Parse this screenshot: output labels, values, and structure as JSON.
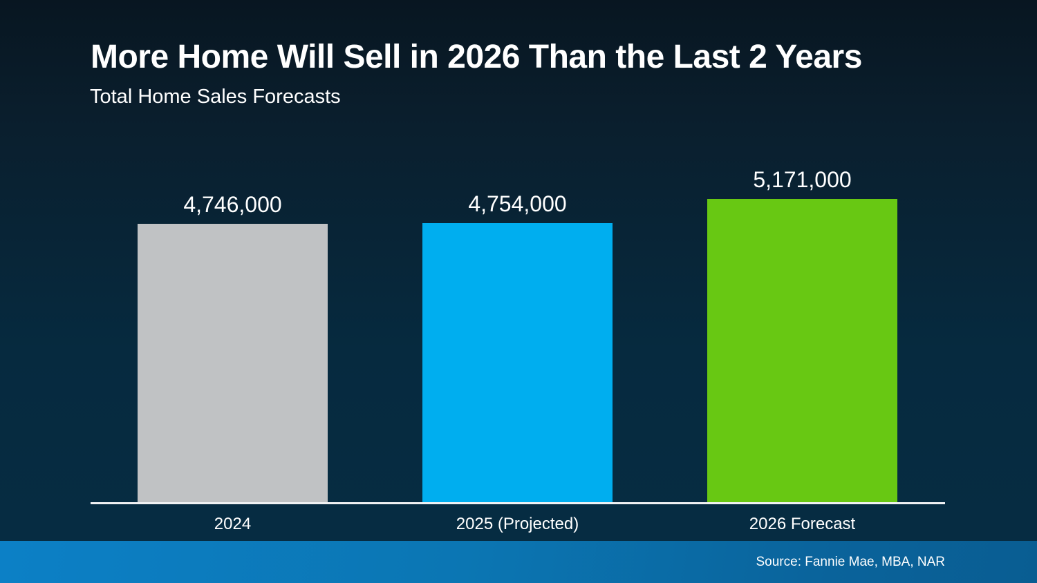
{
  "slide": {
    "title": "More Home Will Sell in 2026 Than the Last 2 Years",
    "subtitle": "Total Home Sales Forecasts",
    "source": "Source: Fannie Mae, MBA, NAR"
  },
  "colors": {
    "background_top": "#081621",
    "background_bottom": "#062c42",
    "axis_line": "#f0f2f4",
    "text": "#ffffff",
    "footer_gradient_left": "#0c80c6",
    "footer_gradient_right": "#095d92"
  },
  "chart_data": {
    "type": "bar",
    "title": "More Home Will Sell in 2026 Than the Last 2 Years",
    "subtitle": "Total Home Sales Forecasts",
    "categories": [
      "2024",
      "2025 (Projected)",
      "2026 Forecast"
    ],
    "values": [
      4746000,
      4754000,
      5171000
    ],
    "value_labels": [
      "4,746,000",
      "4,754,000",
      "5,171,000"
    ],
    "bar_colors": [
      "#c0c2c4",
      "#00aeef",
      "#68c813"
    ],
    "xlabel": "",
    "ylabel": "",
    "ylim": [
      0,
      5500000
    ],
    "baseline": 0,
    "grid": false,
    "legend": false,
    "annotations": [
      "Source: Fannie Mae, MBA, NAR"
    ]
  }
}
